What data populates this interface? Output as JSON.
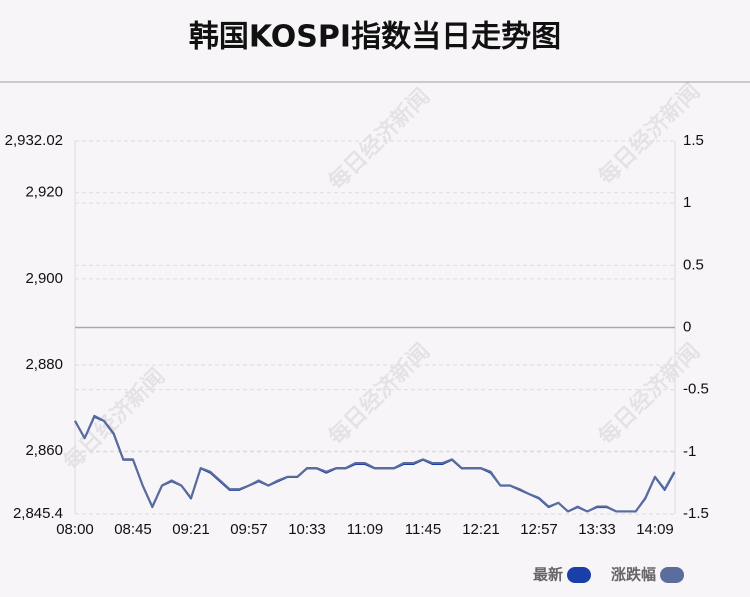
{
  "chart_data": {
    "type": "line",
    "title": "韩国KOSPI指数当日走势图",
    "watermark": "每日经济新闻",
    "categories": [
      "08:00",
      null,
      null,
      null,
      null,
      null,
      "08:45",
      null,
      null,
      null,
      null,
      null,
      "09:21",
      null,
      null,
      null,
      null,
      null,
      "09:57",
      null,
      null,
      null,
      null,
      null,
      "10:33",
      null,
      null,
      null,
      null,
      null,
      "11:09",
      null,
      null,
      null,
      null,
      null,
      "11:45",
      null,
      null,
      null,
      null,
      null,
      "12:21",
      null,
      null,
      null,
      null,
      null,
      "12:57",
      null,
      null,
      null,
      null,
      null,
      "13:33",
      null,
      null,
      null,
      null,
      null,
      "14:09",
      null,
      null
    ],
    "series": [
      {
        "name": "最新",
        "color": "#1a3fa8",
        "values": [
          2867,
          2863,
          2868,
          2867,
          2864,
          2858,
          2858,
          2852,
          2847,
          2852,
          2853,
          2852,
          2849,
          2856,
          2855,
          2853,
          2851,
          2851,
          2852,
          2853,
          2852,
          2853,
          2854,
          2854,
          2856,
          2856,
          2855,
          2856,
          2856,
          2857,
          2857,
          2856,
          2856,
          2856,
          2857,
          2857,
          2858,
          2857,
          2857,
          2858,
          2856,
          2856,
          2856,
          2855,
          2852,
          2852,
          2851,
          2850,
          2849,
          2847,
          2848,
          2846,
          2847,
          2846,
          2847,
          2847,
          2846,
          2846,
          2846,
          2849,
          2854,
          2851,
          2855
        ]
      },
      {
        "name": "涨跌幅",
        "color": "#5a6d9c",
        "axis": "y2",
        "values": [
          -0.75,
          -0.89,
          -0.71,
          -0.75,
          -0.85,
          -1.06,
          -1.06,
          -1.27,
          -1.44,
          -1.27,
          -1.23,
          -1.27,
          -1.37,
          -1.13,
          -1.16,
          -1.23,
          -1.3,
          -1.3,
          -1.27,
          -1.23,
          -1.27,
          -1.23,
          -1.2,
          -1.2,
          -1.13,
          -1.13,
          -1.16,
          -1.13,
          -1.13,
          -1.09,
          -1.09,
          -1.13,
          -1.13,
          -1.13,
          -1.09,
          -1.09,
          -1.06,
          -1.09,
          -1.09,
          -1.06,
          -1.13,
          -1.13,
          -1.13,
          -1.16,
          -1.27,
          -1.27,
          -1.3,
          -1.34,
          -1.37,
          -1.44,
          -1.41,
          -1.48,
          -1.44,
          -1.48,
          -1.44,
          -1.44,
          -1.48,
          -1.48,
          -1.48,
          -1.37,
          -1.2,
          -1.3,
          -1.16
        ]
      }
    ],
    "ylim": [
      2845.4,
      2932.02
    ],
    "yticks": [
      {
        "value": 2845.4,
        "label": "2,845.4"
      },
      {
        "value": 2860,
        "label": "2,860"
      },
      {
        "value": 2880,
        "label": "2,880"
      },
      {
        "value": 2900,
        "label": "2,900"
      },
      {
        "value": 2920,
        "label": "2,920"
      },
      {
        "value": 2932.02,
        "label": "2,932.02"
      }
    ],
    "y2lim": [
      -1.5,
      1.5
    ],
    "y2ticks": [
      -1.5,
      -1,
      -0.5,
      0,
      0.5,
      1,
      1.5
    ],
    "grid": true,
    "legend": "bottom-right"
  }
}
